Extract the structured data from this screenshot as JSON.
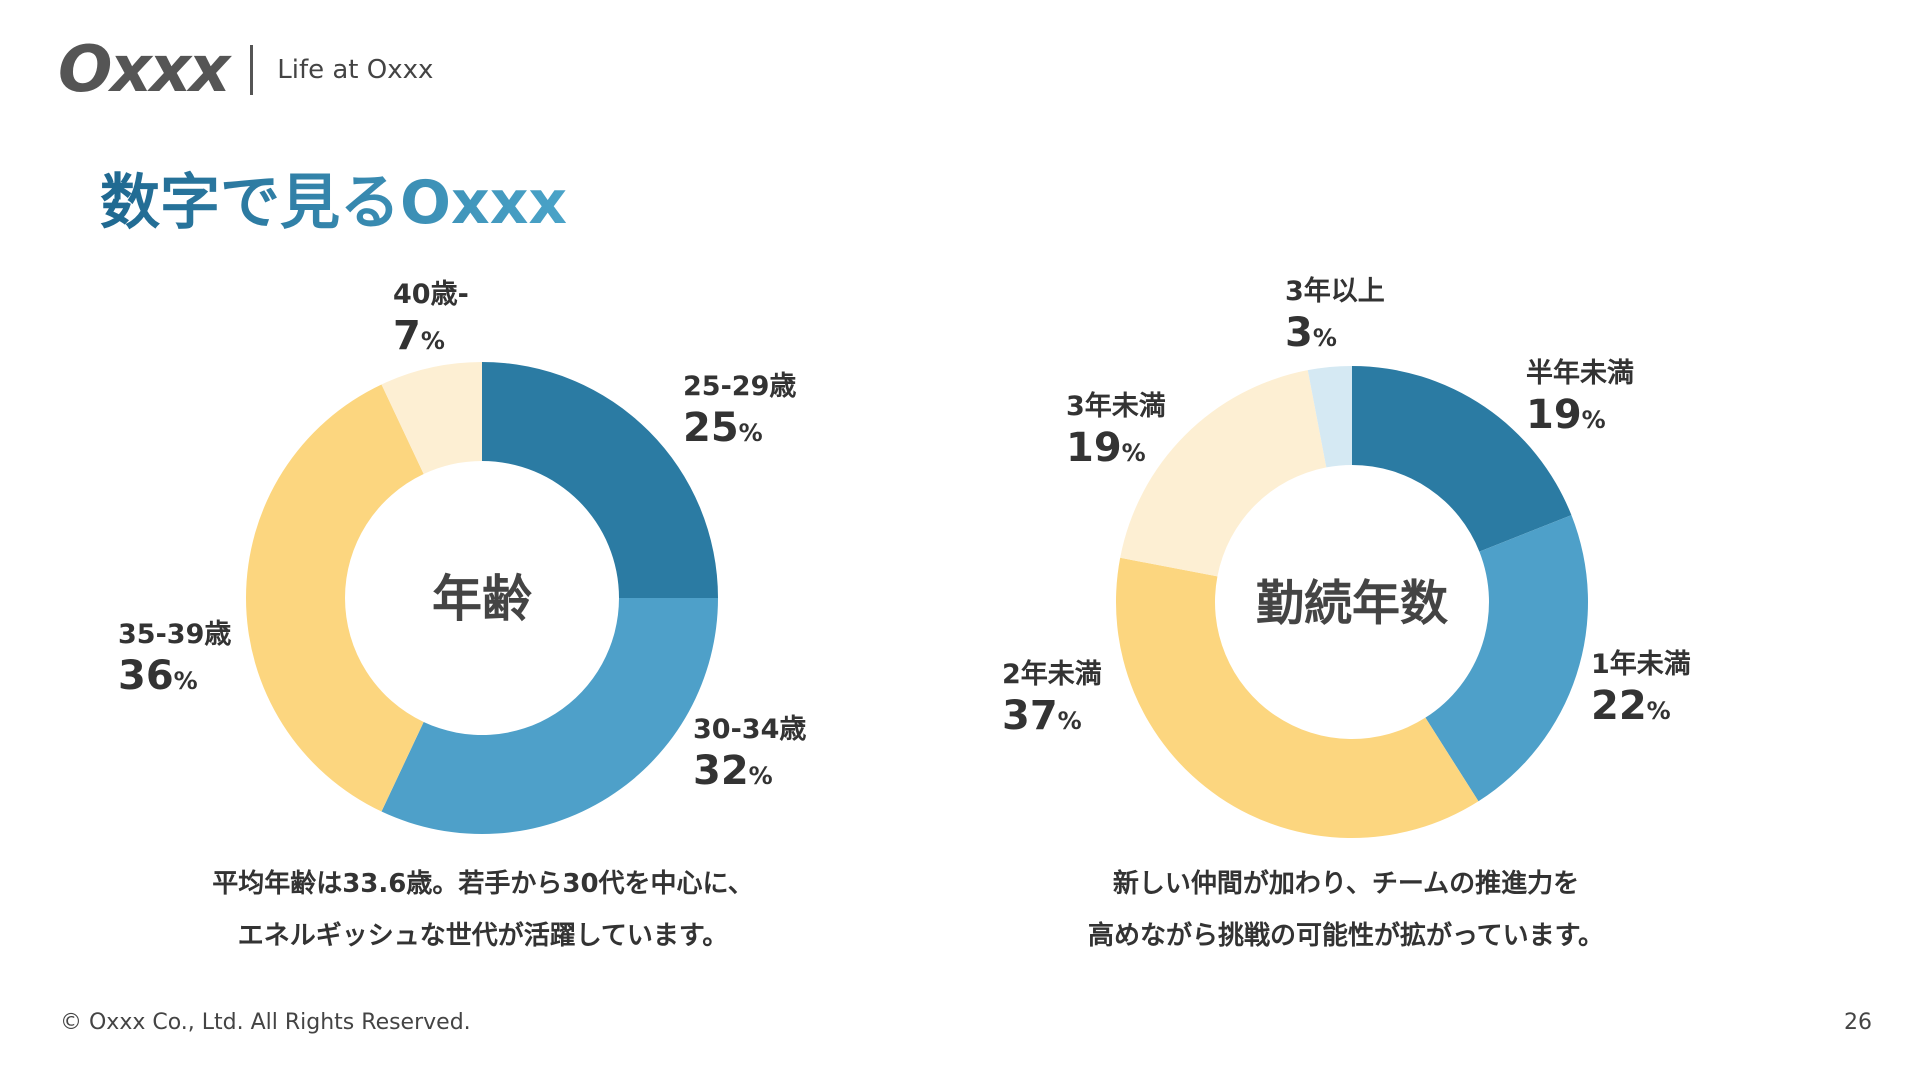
{
  "header": {
    "logo": "Oxxx",
    "tagline": "Life at Oxxx"
  },
  "page_title": "数字で見るOxxx",
  "chart_data": [
    {
      "type": "pie",
      "center_label": "年齢",
      "categories": [
        "25-29歳",
        "30-34歳",
        "35-39歳",
        "40歳-"
      ],
      "values": [
        25,
        32,
        36,
        7
      ],
      "value_suffix": "%",
      "colors": [
        "#2b7ba3",
        "#4ea0c9",
        "#fcd67f",
        "#fdefd3"
      ]
    },
    {
      "type": "pie",
      "center_label": "勤続年数",
      "categories": [
        "半年未満",
        "1年未満",
        "2年未満",
        "3年未満",
        "3年以上"
      ],
      "values": [
        19,
        22,
        37,
        19,
        3
      ],
      "value_suffix": "%",
      "colors": [
        "#2b7ba3",
        "#4ea0c9",
        "#fcd67f",
        "#fdefd3",
        "#d5e9f3"
      ]
    }
  ],
  "captions": [
    [
      "平均年齢は33.6歳。若手から30代を中心に、",
      "エネルギッシュな世代が活躍しています。"
    ],
    [
      "新しい仲間が加わり、チームの推進力を",
      "高めながら挑戦の可能性が拡がっています。"
    ]
  ],
  "footer": {
    "copyright": "© Oxxx Co., Ltd. All Rights Reserved.",
    "page_number": "26"
  }
}
